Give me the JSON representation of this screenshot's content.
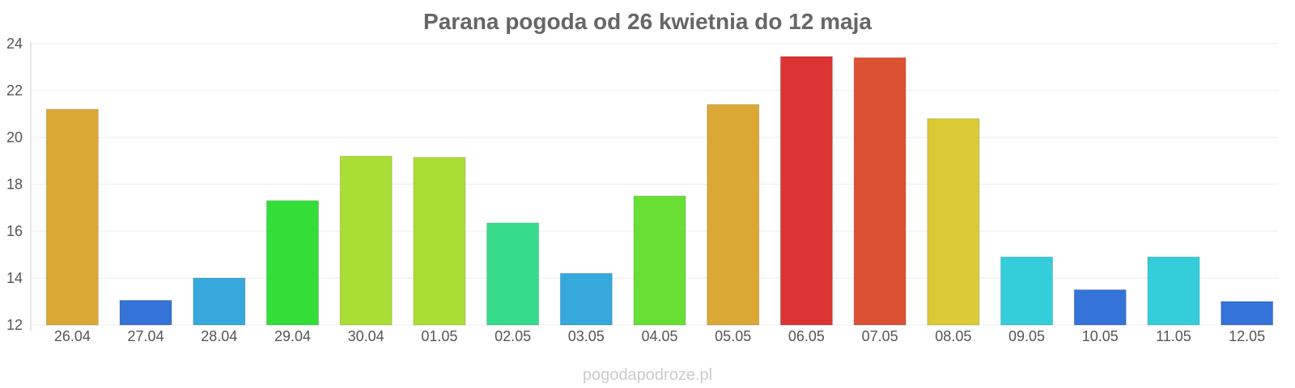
{
  "chart_data": {
    "type": "bar",
    "title": "Parana pogoda od 26 kwietnia do 12 maja",
    "xlabel": "",
    "ylabel": "",
    "ylim": [
      12,
      24
    ],
    "yticks": [
      12,
      14,
      16,
      18,
      20,
      22,
      24
    ],
    "grid": true,
    "categories": [
      "26.04",
      "27.04",
      "28.04",
      "29.04",
      "30.04",
      "01.05",
      "02.05",
      "03.05",
      "04.05",
      "05.05",
      "06.05",
      "07.05",
      "08.05",
      "09.05",
      "10.05",
      "11.05",
      "12.05"
    ],
    "values": [
      21.2,
      13.05,
      14.0,
      17.3,
      19.2,
      19.15,
      16.35,
      14.2,
      17.5,
      21.4,
      23.45,
      23.4,
      20.8,
      14.9,
      13.5,
      14.9,
      13.0
    ],
    "colors": [
      "#dba835",
      "#3473d8",
      "#37a8db",
      "#34de39",
      "#abde34",
      "#abde34",
      "#35db8b",
      "#37a8db",
      "#69de35",
      "#dba835",
      "#dc3433",
      "#dd5133",
      "#dbca35",
      "#34cedb",
      "#3473d8",
      "#34cedb",
      "#3473d8"
    ]
  },
  "watermark": "pogodapodroze.pl"
}
